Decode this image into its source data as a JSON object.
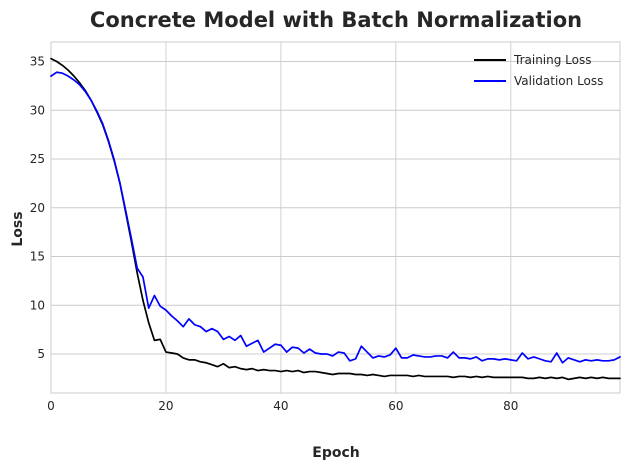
{
  "chart_data": {
    "type": "line",
    "title": "Concrete Model with Batch Normalization",
    "xlabel": "Epoch",
    "ylabel": "Loss",
    "xlim": [
      0,
      99
    ],
    "ylim": [
      1,
      37
    ],
    "xticks": [
      0,
      20,
      40,
      60,
      80
    ],
    "yticks": [
      5,
      10,
      15,
      20,
      25,
      30,
      35
    ],
    "grid": true,
    "legend_position": "top-right",
    "series": [
      {
        "name": "Training Loss",
        "color": "#000000",
        "x": [
          0,
          1,
          2,
          3,
          4,
          5,
          6,
          7,
          8,
          9,
          10,
          11,
          12,
          13,
          14,
          15,
          16,
          17,
          18,
          19,
          20,
          21,
          22,
          23,
          24,
          25,
          26,
          27,
          28,
          29,
          30,
          31,
          32,
          33,
          34,
          35,
          36,
          37,
          38,
          39,
          40,
          41,
          42,
          43,
          44,
          45,
          46,
          47,
          48,
          49,
          50,
          51,
          52,
          53,
          54,
          55,
          56,
          57,
          58,
          59,
          60,
          61,
          62,
          63,
          64,
          65,
          66,
          67,
          68,
          69,
          70,
          71,
          72,
          73,
          74,
          75,
          76,
          77,
          78,
          79,
          80,
          81,
          82,
          83,
          84,
          85,
          86,
          87,
          88,
          89,
          90,
          91,
          92,
          93,
          94,
          95,
          96,
          97,
          98,
          99
        ],
        "values": [
          35.3,
          35.0,
          34.6,
          34.1,
          33.5,
          32.8,
          32.0,
          31.0,
          29.8,
          28.5,
          26.8,
          24.8,
          22.5,
          19.5,
          16.5,
          13.3,
          10.5,
          8.2,
          6.4,
          6.5,
          5.2,
          5.1,
          5.0,
          4.6,
          4.4,
          4.4,
          4.2,
          4.1,
          3.9,
          3.7,
          4.0,
          3.6,
          3.7,
          3.5,
          3.4,
          3.5,
          3.3,
          3.4,
          3.3,
          3.3,
          3.2,
          3.3,
          3.2,
          3.3,
          3.1,
          3.2,
          3.2,
          3.1,
          3.0,
          2.9,
          3.0,
          3.0,
          3.0,
          2.9,
          2.9,
          2.8,
          2.9,
          2.8,
          2.7,
          2.8,
          2.8,
          2.8,
          2.8,
          2.7,
          2.8,
          2.7,
          2.7,
          2.7,
          2.7,
          2.7,
          2.6,
          2.7,
          2.7,
          2.6,
          2.7,
          2.6,
          2.7,
          2.6,
          2.6,
          2.6,
          2.6,
          2.6,
          2.6,
          2.5,
          2.5,
          2.6,
          2.5,
          2.6,
          2.5,
          2.6,
          2.4,
          2.5,
          2.6,
          2.5,
          2.6,
          2.5,
          2.6,
          2.5,
          2.5,
          2.5
        ]
      },
      {
        "name": "Validation Loss",
        "color": "#0000ff",
        "x": [
          0,
          1,
          2,
          3,
          4,
          5,
          6,
          7,
          8,
          9,
          10,
          11,
          12,
          13,
          14,
          15,
          16,
          17,
          18,
          19,
          20,
          21,
          22,
          23,
          24,
          25,
          26,
          27,
          28,
          29,
          30,
          31,
          32,
          33,
          34,
          35,
          36,
          37,
          38,
          39,
          40,
          41,
          42,
          43,
          44,
          45,
          46,
          47,
          48,
          49,
          50,
          51,
          52,
          53,
          54,
          55,
          56,
          57,
          58,
          59,
          60,
          61,
          62,
          63,
          64,
          65,
          66,
          67,
          68,
          69,
          70,
          71,
          72,
          73,
          74,
          75,
          76,
          77,
          78,
          79,
          80,
          81,
          82,
          83,
          84,
          85,
          86,
          87,
          88,
          89,
          90,
          91,
          92,
          93,
          94,
          95,
          96,
          97,
          98,
          99
        ],
        "values": [
          33.5,
          33.9,
          33.8,
          33.5,
          33.1,
          32.6,
          31.9,
          31.0,
          29.9,
          28.6,
          26.9,
          24.9,
          22.5,
          19.7,
          16.8,
          13.8,
          12.9,
          9.7,
          11.0,
          9.9,
          9.5,
          8.9,
          8.4,
          7.8,
          8.6,
          8.0,
          7.8,
          7.3,
          7.6,
          7.3,
          6.5,
          6.8,
          6.4,
          6.9,
          5.8,
          6.1,
          6.4,
          5.2,
          5.6,
          6.0,
          5.9,
          5.2,
          5.7,
          5.6,
          5.1,
          5.5,
          5.1,
          5.0,
          5.0,
          4.8,
          5.2,
          5.1,
          4.3,
          4.5,
          5.8,
          5.2,
          4.6,
          4.8,
          4.7,
          4.9,
          5.6,
          4.6,
          4.6,
          4.9,
          4.8,
          4.7,
          4.7,
          4.8,
          4.8,
          4.6,
          5.2,
          4.6,
          4.6,
          4.5,
          4.7,
          4.3,
          4.5,
          4.5,
          4.4,
          4.5,
          4.4,
          4.3,
          5.1,
          4.5,
          4.7,
          4.5,
          4.3,
          4.2,
          5.1,
          4.1,
          4.6,
          4.4,
          4.2,
          4.4,
          4.3,
          4.4,
          4.3,
          4.3,
          4.4,
          4.7
        ]
      }
    ]
  }
}
